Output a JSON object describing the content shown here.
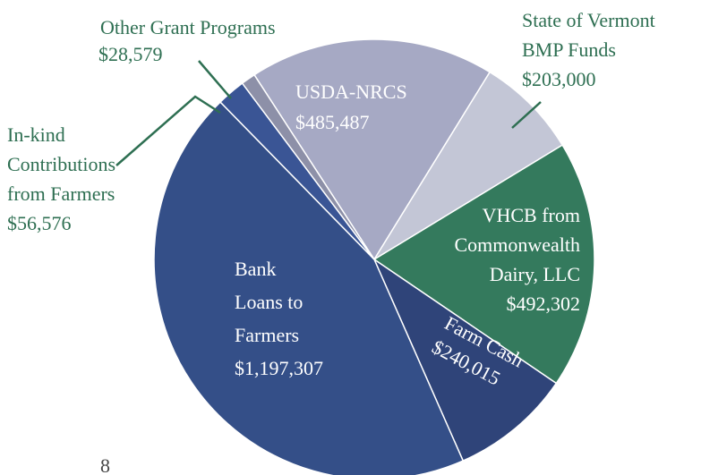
{
  "chart_data": {
    "type": "pie",
    "categories": [
      [
        "USDA-NRCS"
      ],
      [
        "State of Vermont",
        "BMP Funds"
      ],
      [
        "VHCB from",
        "Commonwealth",
        "Dairy, LLC"
      ],
      [
        "Farm Cash"
      ],
      [
        "Bank",
        "Loans to",
        "Farmers"
      ],
      [
        "In-kind",
        "Contributions",
        "from Farmers"
      ],
      [
        "Other Grant Programs"
      ]
    ],
    "values": [
      485487,
      203000,
      492302,
      240015,
      1197307,
      56576,
      28579
    ],
    "value_labels": [
      "$485,487",
      "$203,000",
      "$492,302",
      "$240,015",
      "$1,197,307",
      "$56,576",
      "$28,579"
    ],
    "colors": [
      "#a6a9c4",
      "#c3c6d6",
      "#347a5d",
      "#2f4479",
      "#344f88",
      "#3a5595",
      "#8d90a8"
    ]
  },
  "page_number": "8"
}
